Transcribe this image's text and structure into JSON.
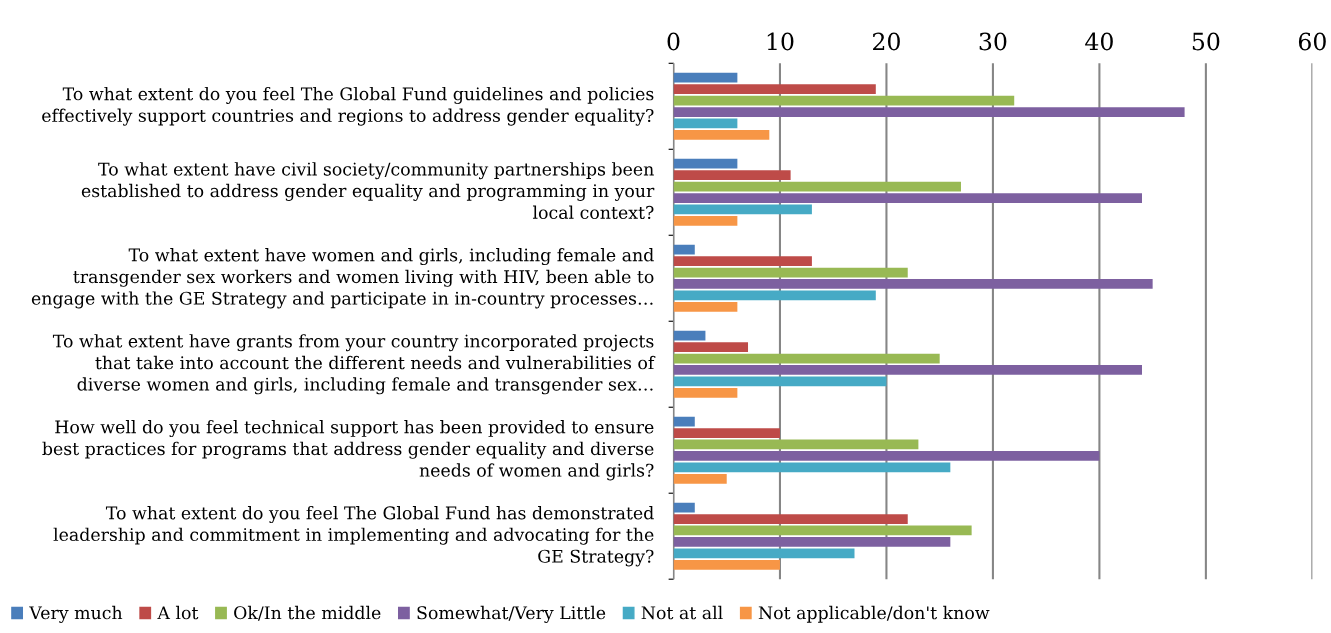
{
  "chart_data": {
    "type": "bar",
    "orientation": "horizontal",
    "categories": [
      "To what extent do you feel The Global Fund guidelines and policies\neffectively support countries and regions to address gender equality?",
      "To what extent have civil society/community partnerships been\nestablished to address gender equality and programming in your\nlocal context?",
      "To what extent have women and girls, including female and\ntransgender sex workers and women living with HIV, been able to\nengage with the GE Strategy and participate in in-country processes…",
      "To what extent have grants from your country incorporated projects\nthat take into account the different needs and vulnerabilities of\ndiverse women and girls, including female and transgender sex…",
      "How well do you feel technical support has been provided to ensure\nbest practices for programs that address gender equality and diverse\nneeds of women and girls?",
      "To what extent do you feel The Global Fund has demonstrated\nleadership and commitment in implementing and advocating for the\nGE Strategy?"
    ],
    "series": [
      {
        "name": "Very much",
        "color": "#4a7ebb",
        "values": [
          6,
          6,
          2,
          3,
          2,
          2
        ]
      },
      {
        "name": "A lot",
        "color": "#be4b48",
        "values": [
          19,
          11,
          13,
          7,
          10,
          22
        ]
      },
      {
        "name": "Ok/In the middle",
        "color": "#98b954",
        "values": [
          32,
          27,
          22,
          25,
          23,
          28
        ]
      },
      {
        "name": "Somewhat/Very Little",
        "color": "#7d60a0",
        "values": [
          48,
          44,
          45,
          44,
          40,
          26
        ]
      },
      {
        "name": "Not at all",
        "color": "#46aac5",
        "values": [
          6,
          13,
          19,
          20,
          26,
          17
        ]
      },
      {
        "name": "Not applicable/don't know",
        "color": "#f79646",
        "values": [
          9,
          6,
          6,
          6,
          5,
          10
        ]
      }
    ],
    "xlim": [
      0,
      60
    ],
    "xticks": [
      0,
      10,
      20,
      30,
      40,
      50,
      60
    ],
    "grid": "x",
    "legend": "bottom"
  }
}
